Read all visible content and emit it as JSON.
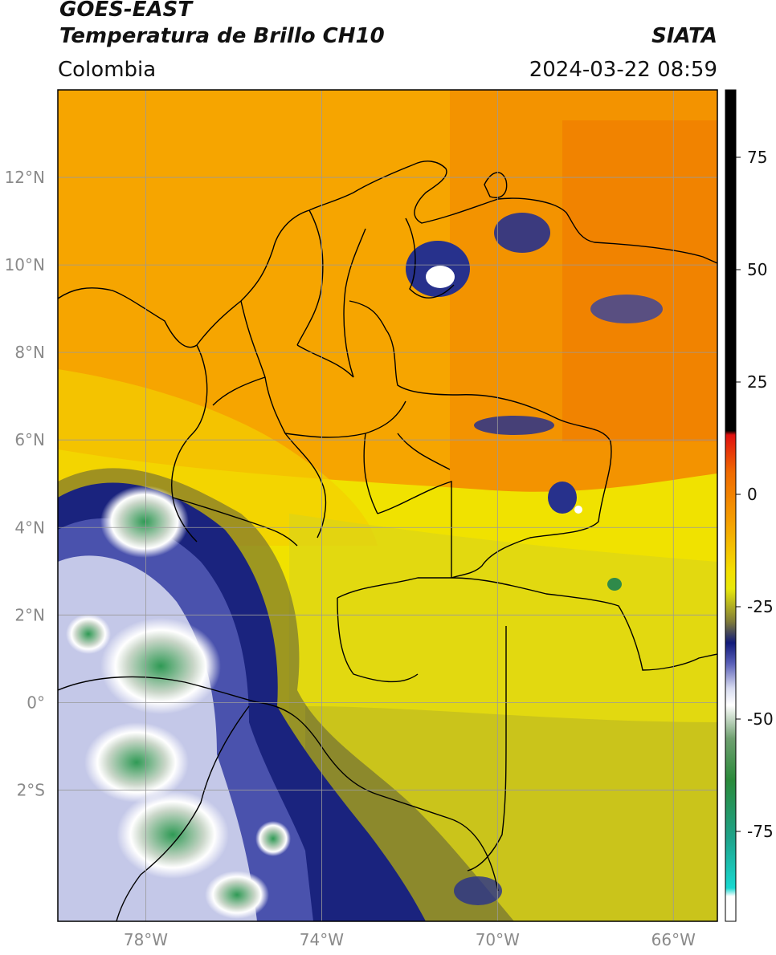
{
  "header": {
    "satellite": "GOES-EAST",
    "product": "Temperatura de Brillo CH10",
    "region": "Colombia",
    "agency": "SIATA",
    "timestamp": "2024-03-22 08:59"
  },
  "map": {
    "lon_range": [
      -80,
      -65
    ],
    "lat_range": [
      -5,
      14
    ],
    "lat_ticks": [
      {
        "value": 12,
        "label": "12°N"
      },
      {
        "value": 10,
        "label": "10°N"
      },
      {
        "value": 8,
        "label": "8°N"
      },
      {
        "value": 6,
        "label": "6°N"
      },
      {
        "value": 4,
        "label": "4°N"
      },
      {
        "value": 2,
        "label": "2°N"
      },
      {
        "value": 0,
        "label": "0°"
      },
      {
        "value": -2,
        "label": "2°S"
      }
    ],
    "lon_ticks": [
      {
        "value": -78,
        "label": "78°W"
      },
      {
        "value": -74,
        "label": "74°W"
      },
      {
        "value": -70,
        "label": "70°W"
      },
      {
        "value": -66,
        "label": "66°W"
      }
    ]
  },
  "colorbar": {
    "range": [
      -95,
      90
    ],
    "tick_values": [
      75,
      50,
      25,
      0,
      -25,
      -50,
      -75
    ],
    "tick_labels": [
      "75",
      "50",
      "25",
      "0",
      "-25",
      "-50",
      "-75"
    ]
  }
}
